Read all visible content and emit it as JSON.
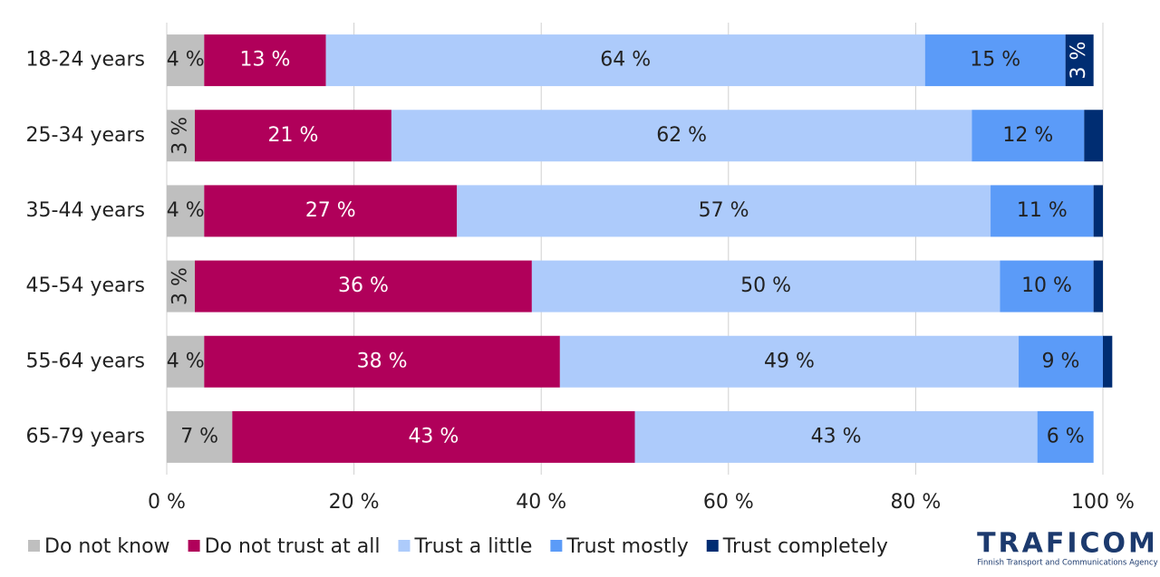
{
  "chart_data": {
    "type": "stacked_bar_horizontal",
    "categories": [
      "18-24 years",
      "25-34 years",
      "35-44 years",
      "45-54 years",
      "55-64 years",
      "65-79 years"
    ],
    "series": [
      {
        "name": "Do not know",
        "color": "#bfbfbf",
        "values": [
          4,
          3,
          4,
          3,
          4,
          7
        ],
        "value_labels": [
          "4 %",
          "3 %",
          "4 %",
          "3 %",
          "4 %",
          "7 %"
        ]
      },
      {
        "name": "Do not trust at all",
        "color": "#b0005a",
        "values": [
          13,
          21,
          27,
          36,
          38,
          43
        ],
        "value_labels": [
          "13 %",
          "21 %",
          "27 %",
          "36 %",
          "38 %",
          "43 %"
        ]
      },
      {
        "name": "Trust a little",
        "color": "#adcbfb",
        "values": [
          64,
          62,
          57,
          50,
          49,
          43
        ],
        "value_labels": [
          "64 %",
          "62 %",
          "57 %",
          "50 %",
          "49 %",
          "43 %"
        ]
      },
      {
        "name": "Trust mostly",
        "color": "#5b9bf8",
        "values": [
          15,
          12,
          11,
          10,
          9,
          6
        ],
        "value_labels": [
          "15 %",
          "12 %",
          "11 %",
          "10 %",
          "9 %",
          "6 %"
        ]
      },
      {
        "name": "Trust completely",
        "color": "#002d72",
        "values": [
          3,
          2,
          1,
          1,
          1,
          0
        ],
        "value_labels": [
          "3 %",
          null,
          null,
          null,
          null,
          null
        ]
      }
    ],
    "xlim": [
      0,
      100
    ],
    "xticks": [
      {
        "value": 0,
        "label": "0 %"
      },
      {
        "value": 20,
        "label": "20 %"
      },
      {
        "value": 40,
        "label": "40 %"
      },
      {
        "value": 60,
        "label": "60 %"
      },
      {
        "value": 80,
        "label": "80 %"
      },
      {
        "value": 100,
        "label": "100 %"
      }
    ],
    "grid": true,
    "legend": "bottom"
  },
  "logo": {
    "name": "TRAFICOM",
    "tagline": "Finnish Transport and Communications Agency"
  }
}
